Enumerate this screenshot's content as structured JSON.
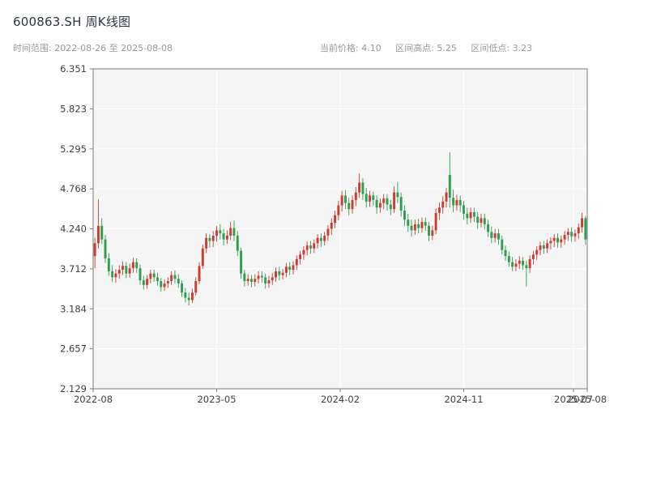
{
  "header": {
    "title": "600863.SH 周K线图",
    "time_range": "时间范围: 2022-08-26 至 2025-08-08",
    "current_price": "当前价格: 4.10",
    "range_high": "区间高点: 5.25",
    "range_low": "区间低点: 3.23"
  },
  "chart_data": {
    "type": "candlestick",
    "symbol": "600863.SH",
    "interval": "weekly",
    "title": "600863.SH 周K线图",
    "start_date": "2022-08-26",
    "end_date": "2025-08-08",
    "current_price": 4.1,
    "range_high": 5.25,
    "range_low": 3.23,
    "ylim": [
      2.129,
      6.351
    ],
    "y_ticks": [
      "6.351",
      "5.823",
      "5.295",
      "4.768",
      "4.240",
      "3.712",
      "3.184",
      "2.657",
      "2.129"
    ],
    "x_ticks": [
      "2022-08",
      "2023-05",
      "2024-02",
      "2024-11",
      "2025-07",
      "2025-08"
    ],
    "x_range": [
      "2022-08",
      "2025-08"
    ],
    "grid": true,
    "colors": {
      "up": "#cf3b2e",
      "down": "#2f9e4f",
      "plot_bg": "#f5f5f5",
      "grid": "#ffffff",
      "spine": "#7a7a7a",
      "tick_text": "#404040"
    },
    "candles": [
      [
        3.88,
        4.12,
        3.72,
        4.05
      ],
      [
        4.05,
        4.63,
        3.98,
        4.28
      ],
      [
        4.28,
        4.38,
        4.04,
        4.1
      ],
      [
        4.1,
        4.16,
        3.79,
        3.85
      ],
      [
        3.85,
        3.92,
        3.62,
        3.68
      ],
      [
        3.68,
        3.76,
        3.54,
        3.6
      ],
      [
        3.6,
        3.71,
        3.53,
        3.65
      ],
      [
        3.65,
        3.76,
        3.58,
        3.7
      ],
      [
        3.7,
        3.81,
        3.63,
        3.75
      ],
      [
        3.75,
        3.8,
        3.59,
        3.65
      ],
      [
        3.65,
        3.78,
        3.6,
        3.72
      ],
      [
        3.72,
        3.86,
        3.66,
        3.8
      ],
      [
        3.8,
        3.85,
        3.66,
        3.72
      ],
      [
        3.72,
        3.77,
        3.5,
        3.56
      ],
      [
        3.56,
        3.62,
        3.44,
        3.5
      ],
      [
        3.5,
        3.63,
        3.45,
        3.58
      ],
      [
        3.58,
        3.7,
        3.52,
        3.65
      ],
      [
        3.65,
        3.7,
        3.54,
        3.6
      ],
      [
        3.6,
        3.66,
        3.49,
        3.55
      ],
      [
        3.55,
        3.59,
        3.41,
        3.47
      ],
      [
        3.47,
        3.57,
        3.42,
        3.52
      ],
      [
        3.52,
        3.6,
        3.46,
        3.55
      ],
      [
        3.55,
        3.68,
        3.5,
        3.63
      ],
      [
        3.63,
        3.69,
        3.52,
        3.58
      ],
      [
        3.58,
        3.64,
        3.46,
        3.52
      ],
      [
        3.52,
        3.56,
        3.34,
        3.4
      ],
      [
        3.4,
        3.46,
        3.27,
        3.33
      ],
      [
        3.33,
        3.4,
        3.23,
        3.3
      ],
      [
        3.3,
        3.45,
        3.26,
        3.4
      ],
      [
        3.4,
        3.6,
        3.36,
        3.55
      ],
      [
        3.55,
        3.8,
        3.51,
        3.75
      ],
      [
        3.75,
        4.03,
        3.71,
        3.98
      ],
      [
        3.98,
        4.18,
        3.92,
        4.12
      ],
      [
        4.12,
        4.17,
        3.99,
        4.08
      ],
      [
        4.08,
        4.21,
        4.0,
        4.15
      ],
      [
        4.15,
        4.28,
        4.07,
        4.22
      ],
      [
        4.22,
        4.3,
        4.1,
        4.18
      ],
      [
        4.18,
        4.24,
        4.02,
        4.1
      ],
      [
        4.1,
        4.22,
        4.04,
        4.15
      ],
      [
        4.15,
        4.33,
        4.09,
        4.25
      ],
      [
        4.25,
        4.35,
        4.08,
        4.15
      ],
      [
        4.15,
        4.21,
        3.88,
        3.95
      ],
      [
        3.95,
        3.99,
        3.58,
        3.65
      ],
      [
        3.65,
        3.7,
        3.48,
        3.55
      ],
      [
        3.55,
        3.64,
        3.49,
        3.58
      ],
      [
        3.58,
        3.63,
        3.47,
        3.54
      ],
      [
        3.54,
        3.64,
        3.48,
        3.58
      ],
      [
        3.58,
        3.68,
        3.52,
        3.62
      ],
      [
        3.62,
        3.68,
        3.53,
        3.6
      ],
      [
        3.6,
        3.65,
        3.45,
        3.52
      ],
      [
        3.52,
        3.62,
        3.46,
        3.56
      ],
      [
        3.56,
        3.66,
        3.5,
        3.6
      ],
      [
        3.6,
        3.73,
        3.54,
        3.68
      ],
      [
        3.68,
        3.74,
        3.56,
        3.63
      ],
      [
        3.63,
        3.71,
        3.57,
        3.66
      ],
      [
        3.66,
        3.79,
        3.6,
        3.74
      ],
      [
        3.74,
        3.8,
        3.63,
        3.7
      ],
      [
        3.7,
        3.81,
        3.64,
        3.76
      ],
      [
        3.76,
        3.89,
        3.7,
        3.84
      ],
      [
        3.84,
        3.95,
        3.77,
        3.9
      ],
      [
        3.9,
        4.01,
        3.83,
        3.96
      ],
      [
        3.96,
        4.07,
        3.89,
        4.02
      ],
      [
        4.02,
        4.08,
        3.91,
        3.98
      ],
      [
        3.98,
        4.1,
        3.92,
        4.05
      ],
      [
        4.05,
        4.17,
        3.98,
        4.12
      ],
      [
        4.12,
        4.18,
        4.0,
        4.08
      ],
      [
        4.08,
        4.2,
        4.02,
        4.15
      ],
      [
        4.15,
        4.29,
        4.08,
        4.24
      ],
      [
        4.24,
        4.38,
        4.16,
        4.32
      ],
      [
        4.32,
        4.48,
        4.25,
        4.42
      ],
      [
        4.42,
        4.61,
        4.35,
        4.55
      ],
      [
        4.55,
        4.74,
        4.47,
        4.68
      ],
      [
        4.68,
        4.75,
        4.5,
        4.58
      ],
      [
        4.58,
        4.65,
        4.42,
        4.5
      ],
      [
        4.5,
        4.68,
        4.44,
        4.62
      ],
      [
        4.62,
        4.79,
        4.54,
        4.72
      ],
      [
        4.72,
        4.97,
        4.65,
        4.85
      ],
      [
        4.85,
        4.91,
        4.62,
        4.7
      ],
      [
        4.7,
        4.78,
        4.52,
        4.6
      ],
      [
        4.6,
        4.74,
        4.53,
        4.68
      ],
      [
        4.68,
        4.73,
        4.54,
        4.62
      ],
      [
        4.62,
        4.68,
        4.44,
        4.52
      ],
      [
        4.52,
        4.64,
        4.45,
        4.58
      ],
      [
        4.58,
        4.7,
        4.5,
        4.64
      ],
      [
        4.64,
        4.7,
        4.48,
        4.56
      ],
      [
        4.56,
        4.62,
        4.42,
        4.5
      ],
      [
        4.5,
        4.8,
        4.45,
        4.72
      ],
      [
        4.72,
        4.86,
        4.58,
        4.66
      ],
      [
        4.66,
        4.72,
        4.4,
        4.48
      ],
      [
        4.48,
        4.55,
        4.28,
        4.36
      ],
      [
        4.36,
        4.44,
        4.2,
        4.28
      ],
      [
        4.28,
        4.36,
        4.14,
        4.22
      ],
      [
        4.22,
        4.36,
        4.16,
        4.3
      ],
      [
        4.3,
        4.37,
        4.18,
        4.25
      ],
      [
        4.25,
        4.39,
        4.19,
        4.33
      ],
      [
        4.33,
        4.39,
        4.21,
        4.28
      ],
      [
        4.28,
        4.33,
        4.08,
        4.15
      ],
      [
        4.15,
        4.28,
        4.09,
        4.22
      ],
      [
        4.22,
        4.51,
        4.17,
        4.45
      ],
      [
        4.45,
        4.59,
        4.36,
        4.52
      ],
      [
        4.52,
        4.67,
        4.44,
        4.6
      ],
      [
        4.6,
        4.78,
        4.52,
        4.72
      ],
      [
        4.95,
        5.25,
        4.52,
        4.65
      ],
      [
        4.65,
        4.76,
        4.46,
        4.55
      ],
      [
        4.55,
        4.69,
        4.48,
        4.62
      ],
      [
        4.62,
        4.68,
        4.46,
        4.55
      ],
      [
        4.55,
        4.61,
        4.36,
        4.44
      ],
      [
        4.44,
        4.52,
        4.3,
        4.38
      ],
      [
        4.38,
        4.52,
        4.32,
        4.46
      ],
      [
        4.46,
        4.52,
        4.33,
        4.4
      ],
      [
        4.4,
        4.46,
        4.24,
        4.32
      ],
      [
        4.32,
        4.44,
        4.26,
        4.38
      ],
      [
        4.38,
        4.44,
        4.23,
        4.3
      ],
      [
        4.3,
        4.36,
        4.13,
        4.2
      ],
      [
        4.2,
        4.27,
        4.05,
        4.12
      ],
      [
        4.12,
        4.24,
        4.06,
        4.18
      ],
      [
        4.18,
        4.24,
        4.03,
        4.1
      ],
      [
        4.1,
        4.15,
        3.9,
        3.96
      ],
      [
        3.96,
        4.02,
        3.82,
        3.88
      ],
      [
        3.88,
        3.94,
        3.74,
        3.8
      ],
      [
        3.8,
        3.87,
        3.68,
        3.74
      ],
      [
        3.74,
        3.84,
        3.68,
        3.78
      ],
      [
        3.78,
        3.88,
        3.71,
        3.82
      ],
      [
        3.82,
        3.87,
        3.7,
        3.76
      ],
      [
        3.76,
        3.82,
        3.48,
        3.72
      ],
      [
        3.72,
        3.89,
        3.66,
        3.84
      ],
      [
        3.84,
        3.95,
        3.77,
        3.9
      ],
      [
        3.9,
        4.01,
        3.83,
        3.96
      ],
      [
        3.96,
        4.07,
        3.89,
        4.02
      ],
      [
        4.02,
        4.08,
        3.91,
        3.98
      ],
      [
        3.98,
        4.1,
        3.92,
        4.05
      ],
      [
        4.05,
        4.13,
        3.97,
        4.08
      ],
      [
        4.08,
        4.17,
        4.0,
        4.12
      ],
      [
        4.12,
        4.18,
        3.99,
        4.06
      ],
      [
        4.06,
        4.15,
        3.99,
        4.1
      ],
      [
        4.1,
        4.21,
        4.03,
        4.16
      ],
      [
        4.16,
        4.25,
        4.08,
        4.2
      ],
      [
        4.2,
        4.26,
        4.07,
        4.14
      ],
      [
        4.14,
        4.23,
        4.07,
        4.18
      ],
      [
        4.18,
        4.31,
        4.11,
        4.26
      ],
      [
        4.26,
        4.45,
        4.19,
        4.38
      ],
      [
        4.38,
        4.41,
        4.03,
        4.1
      ]
    ]
  }
}
